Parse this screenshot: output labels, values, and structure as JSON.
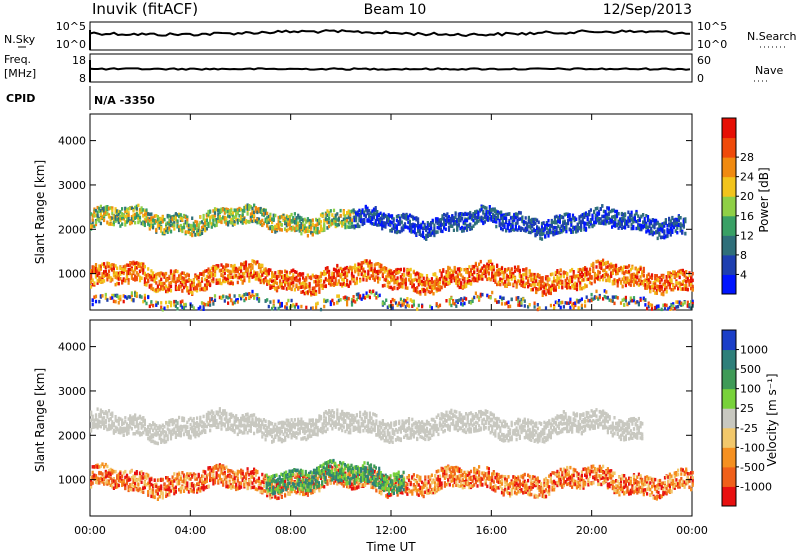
{
  "header": {
    "station": "Inuvik (fitACF)",
    "beam": "Beam 10",
    "date": "12/Sep/2013"
  },
  "params_panel": {
    "nsky_label": "N.Sky",
    "nsky_ticks": [
      "10^5",
      "10^0"
    ],
    "nsearch_label": "N.Search",
    "nsearch_ticks": [
      "10^5",
      "10^0"
    ],
    "freq_label": "Freq.",
    "freq_unit": "[MHz]",
    "freq_ticks": [
      "18",
      "8"
    ],
    "nave_label": "Nave",
    "nave_ticks": [
      "60",
      "0"
    ],
    "cpid_label": "CPID",
    "cpid_value": "N/A -3350"
  },
  "chart_data": [
    {
      "type": "heatmap",
      "title": "",
      "xlabel": "",
      "ylabel": "Slant Range [km]",
      "x_ticks": [
        "00:00",
        "04:00",
        "08:00",
        "12:00",
        "16:00",
        "20:00",
        "00:00"
      ],
      "y_ticks": [
        "1000",
        "2000",
        "3000",
        "4000"
      ],
      "xlim_hours": [
        0,
        24
      ],
      "ylim": [
        180,
        4600
      ],
      "colorbar": {
        "label": "Power [dB]",
        "ticks": [
          "4",
          "8",
          "12",
          "16",
          "20",
          "24",
          "28"
        ],
        "colors": [
          "#0015ff",
          "#1e3fb0",
          "#2f6f7a",
          "#39a065",
          "#8fd046",
          "#f2c41c",
          "#f08a10",
          "#ef4a0a",
          "#e60f05"
        ]
      },
      "bands": [
        {
          "center_km": 900,
          "width_km": 450,
          "start_h": 0,
          "end_h": 24,
          "level": "high"
        },
        {
          "center_km": 2200,
          "width_km": 400,
          "start_h": 0,
          "end_h": 10.5,
          "level": "mid"
        },
        {
          "center_km": 2150,
          "width_km": 400,
          "start_h": 10.5,
          "end_h": 23.7,
          "level": "low"
        },
        {
          "center_km": 350,
          "width_km": 200,
          "start_h": 0,
          "end_h": 24,
          "level": "sparse"
        }
      ]
    },
    {
      "type": "heatmap",
      "title": "",
      "xlabel": "Time UT",
      "ylabel": "Slant Range [km]",
      "x_ticks": [
        "00:00",
        "04:00",
        "08:00",
        "12:00",
        "16:00",
        "20:00",
        "00:00"
      ],
      "y_ticks": [
        "1000",
        "2000",
        "3000",
        "4000"
      ],
      "xlim_hours": [
        0,
        24
      ],
      "ylim": [
        180,
        4600
      ],
      "colorbar": {
        "label": "Velocity [m s⁻¹]",
        "ticks": [
          "1000",
          "500",
          "100",
          "25",
          "-25",
          "-100",
          "-500",
          "-1000"
        ],
        "colors": [
          "#1b3fc8",
          "#2e7f7a",
          "#3f9a57",
          "#78d23a",
          "#c8c8c0",
          "#f2c86b",
          "#f59020",
          "#f0601a",
          "#e81010"
        ]
      },
      "bands": [
        {
          "center_km": 950,
          "width_km": 450,
          "start_h": 0,
          "end_h": 24,
          "level": "negative"
        },
        {
          "center_km": 1050,
          "width_km": 450,
          "start_h": 7,
          "end_h": 12.5,
          "level": "positive"
        },
        {
          "center_km": 2200,
          "width_km": 450,
          "start_h": 0,
          "end_h": 22,
          "level": "zero"
        }
      ]
    }
  ]
}
